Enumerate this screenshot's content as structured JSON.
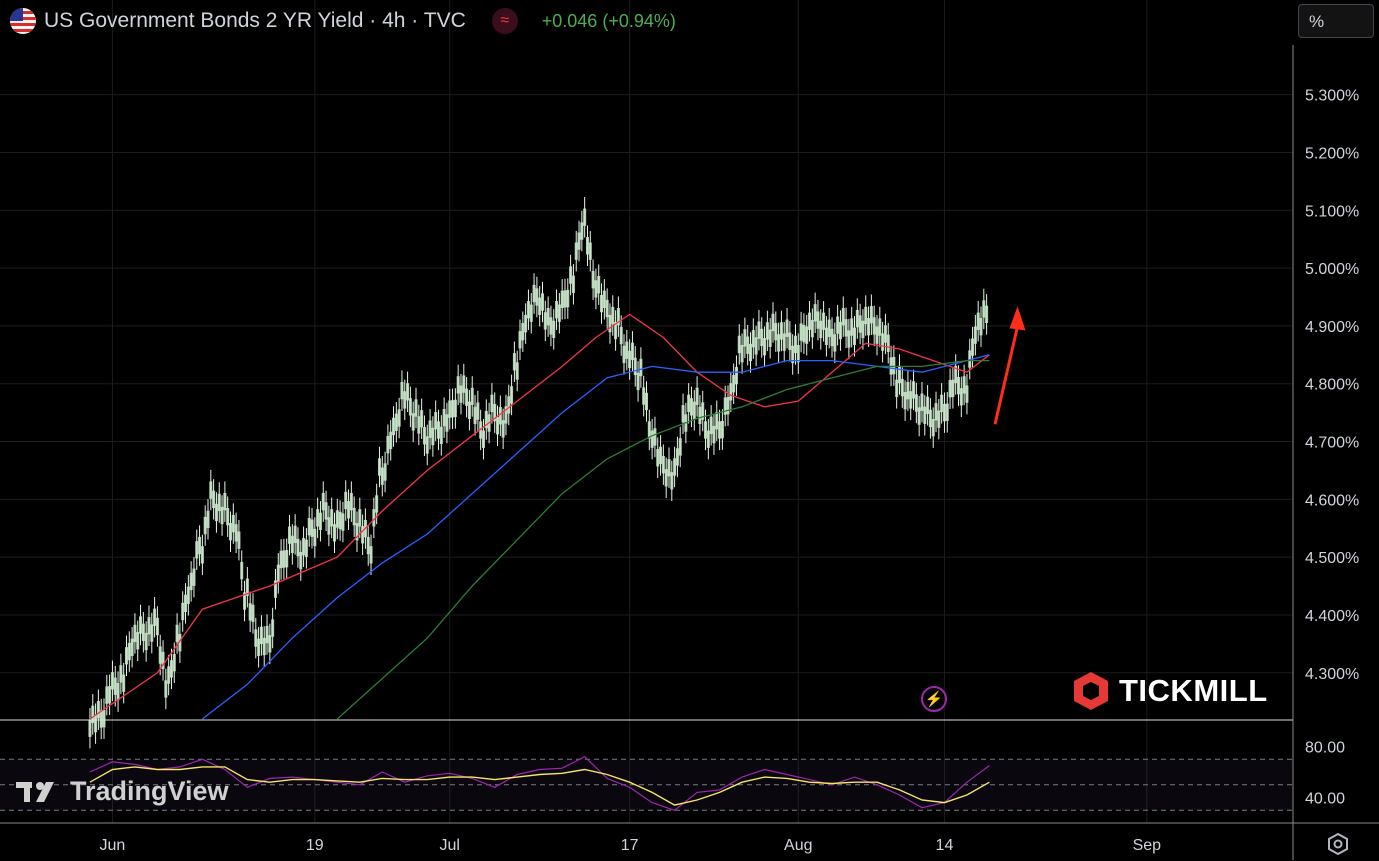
{
  "header": {
    "title": "US Government Bonds 2 YR Yield · 4h · TVC",
    "change": "+0.046 (+0.94%)",
    "flag_icon": "us-flag-icon",
    "indicator_icon": "waves-icon"
  },
  "scale_mode": "%",
  "watermark": "TradingView",
  "brand": "TICKMILL",
  "colors": {
    "candle_up": "#e8f5e9",
    "ma_short": "#f23645",
    "ma_mid": "#2962ff",
    "ma_long": "#2e7d32",
    "rsi": "#9c27b0",
    "rsi_ma": "#f5e663",
    "arrow": "#ff2d1a",
    "change_up": "#4caf50"
  },
  "chart_data": [
    {
      "type": "line",
      "title": "US Government Bonds 2 YR Yield · 4h · TVC",
      "ylim": [
        4.22,
        5.36
      ],
      "y_ticks": [
        "5.300%",
        "5.200%",
        "5.100%",
        "5.000%",
        "4.900%",
        "4.800%",
        "4.700%",
        "4.600%",
        "4.500%",
        "4.400%",
        "4.300%"
      ],
      "y_tick_values": [
        5.3,
        5.2,
        5.1,
        5.0,
        4.9,
        4.8,
        4.7,
        4.6,
        4.5,
        4.4,
        4.3
      ],
      "x_ticks": [
        "Jun",
        "19",
        "Jul",
        "17",
        "Aug",
        "14",
        "Sep"
      ],
      "x_tick_dates": [
        "2023-06-01",
        "2023-06-19",
        "2023-07-01",
        "2023-07-17",
        "2023-08-01",
        "2023-08-14",
        "2023-09-01"
      ],
      "xlim": [
        "2023-05-22",
        "2023-09-14"
      ],
      "grid": true,
      "series": [
        {
          "values": [
            [
              0,
              4.22
            ],
            [
              1,
              4.27
            ],
            [
              2,
              4.29
            ],
            [
              3,
              4.36
            ],
            [
              4,
              4.37
            ],
            [
              5,
              4.38
            ],
            [
              6,
              4.28
            ],
            [
              7,
              4.36
            ],
            [
              8,
              4.45
            ],
            [
              9,
              4.52
            ],
            [
              10,
              4.6
            ],
            [
              11,
              4.58
            ],
            [
              12,
              4.55
            ],
            [
              13,
              4.44
            ],
            [
              14,
              4.36
            ],
            [
              15,
              4.35
            ],
            [
              16,
              4.48
            ],
            [
              17,
              4.53
            ],
            [
              18,
              4.51
            ],
            [
              19,
              4.55
            ],
            [
              20,
              4.58
            ],
            [
              21,
              4.55
            ],
            [
              22,
              4.59
            ],
            [
              23,
              4.56
            ],
            [
              24,
              4.52
            ],
            [
              25,
              4.64
            ],
            [
              26,
              4.71
            ],
            [
              27,
              4.78
            ],
            [
              28,
              4.75
            ],
            [
              29,
              4.71
            ],
            [
              30,
              4.72
            ],
            [
              31,
              4.74
            ],
            [
              32,
              4.79
            ],
            [
              33,
              4.77
            ],
            [
              34,
              4.72
            ],
            [
              35,
              4.75
            ],
            [
              36,
              4.73
            ],
            [
              37,
              4.83
            ],
            [
              38,
              4.92
            ],
            [
              39,
              4.95
            ],
            [
              40,
              4.9
            ],
            [
              41,
              4.93
            ],
            [
              42,
              4.98
            ],
            [
              43,
              5.08
            ],
            [
              44,
              4.98
            ],
            [
              45,
              4.93
            ],
            [
              46,
              4.9
            ],
            [
              47,
              4.85
            ],
            [
              48,
              4.82
            ],
            [
              49,
              4.72
            ],
            [
              50,
              4.66
            ],
            [
              51,
              4.64
            ],
            [
              52,
              4.74
            ],
            [
              53,
              4.77
            ],
            [
              54,
              4.72
            ],
            [
              55,
              4.72
            ],
            [
              56,
              4.77
            ],
            [
              57,
              4.86
            ],
            [
              58,
              4.87
            ],
            [
              59,
              4.88
            ],
            [
              60,
              4.89
            ],
            [
              61,
              4.88
            ],
            [
              62,
              4.86
            ],
            [
              63,
              4.9
            ],
            [
              64,
              4.91
            ],
            [
              65,
              4.88
            ],
            [
              66,
              4.9
            ],
            [
              67,
              4.89
            ],
            [
              68,
              4.91
            ],
            [
              69,
              4.9
            ],
            [
              70,
              4.87
            ],
            [
              71,
              4.8
            ],
            [
              72,
              4.78
            ],
            [
              73,
              4.76
            ],
            [
              74,
              4.74
            ],
            [
              75,
              4.75
            ],
            [
              76,
              4.8
            ],
            [
              77,
              4.79
            ],
            [
              78,
              4.9
            ],
            [
              79,
              4.92
            ]
          ]
        },
        {
          "name": "",
          "values": [
            [
              0,
              4.22
            ],
            [
              6,
              4.3
            ],
            [
              10,
              4.41
            ],
            [
              16,
              4.45
            ],
            [
              22,
              4.5
            ],
            [
              26,
              4.58
            ],
            [
              30,
              4.65
            ],
            [
              34,
              4.71
            ],
            [
              38,
              4.77
            ],
            [
              42,
              4.83
            ],
            [
              45,
              4.88
            ],
            [
              48,
              4.92
            ],
            [
              51,
              4.88
            ],
            [
              54,
              4.82
            ],
            [
              57,
              4.78
            ],
            [
              60,
              4.76
            ],
            [
              63,
              4.77
            ],
            [
              66,
              4.82
            ],
            [
              69,
              4.87
            ],
            [
              72,
              4.86
            ],
            [
              75,
              4.84
            ],
            [
              78,
              4.82
            ],
            [
              80,
              4.85
            ]
          ]
        },
        {
          "name": "",
          "values": [
            [
              10,
              4.22
            ],
            [
              14,
              4.28
            ],
            [
              18,
              4.36
            ],
            [
              22,
              4.43
            ],
            [
              26,
              4.49
            ],
            [
              30,
              4.54
            ],
            [
              34,
              4.61
            ],
            [
              38,
              4.68
            ],
            [
              42,
              4.75
            ],
            [
              46,
              4.81
            ],
            [
              50,
              4.83
            ],
            [
              54,
              4.82
            ],
            [
              58,
              4.82
            ],
            [
              62,
              4.84
            ],
            [
              66,
              4.84
            ],
            [
              70,
              4.83
            ],
            [
              74,
              4.82
            ],
            [
              78,
              4.84
            ],
            [
              80,
              4.85
            ]
          ]
        },
        {
          "name": "",
          "values": [
            [
              22,
              4.22
            ],
            [
              26,
              4.29
            ],
            [
              30,
              4.36
            ],
            [
              34,
              4.45
            ],
            [
              38,
              4.53
            ],
            [
              42,
              4.61
            ],
            [
              46,
              4.67
            ],
            [
              50,
              4.71
            ],
            [
              54,
              4.74
            ],
            [
              58,
              4.76
            ],
            [
              62,
              4.79
            ],
            [
              66,
              4.81
            ],
            [
              70,
              4.83
            ],
            [
              74,
              4.83
            ],
            [
              78,
              4.84
            ],
            [
              80,
              4.84
            ]
          ]
        }
      ],
      "annotations": [
        {
          "type": "arrow",
          "from": [
            80.5,
            4.73
          ],
          "to": [
            82.5,
            4.92
          ]
        }
      ]
    },
    {
      "type": "line",
      "title": "",
      "ylim": [
        20,
        100
      ],
      "y_ticks": [
        "80.00",
        "40.00"
      ],
      "y_tick_values": [
        80,
        40
      ],
      "bands": [
        70,
        50,
        30
      ],
      "series": [
        {
          "values": [
            [
              0,
              60
            ],
            [
              2,
              68
            ],
            [
              4,
              66
            ],
            [
              6,
              62
            ],
            [
              8,
              64
            ],
            [
              10,
              70
            ],
            [
              12,
              62
            ],
            [
              14,
              48
            ],
            [
              16,
              55
            ],
            [
              18,
              56
            ],
            [
              20,
              54
            ],
            [
              22,
              52
            ],
            [
              24,
              50
            ],
            [
              26,
              60
            ],
            [
              28,
              52
            ],
            [
              30,
              57
            ],
            [
              32,
              59
            ],
            [
              34,
              55
            ],
            [
              36,
              48
            ],
            [
              38,
              58
            ],
            [
              40,
              62
            ],
            [
              42,
              63
            ],
            [
              44,
              72
            ],
            [
              46,
              55
            ],
            [
              48,
              48
            ],
            [
              50,
              36
            ],
            [
              52,
              30
            ],
            [
              54,
              44
            ],
            [
              56,
              46
            ],
            [
              58,
              56
            ],
            [
              60,
              62
            ],
            [
              62,
              58
            ],
            [
              64,
              54
            ],
            [
              66,
              50
            ],
            [
              68,
              56
            ],
            [
              70,
              50
            ],
            [
              72,
              42
            ],
            [
              74,
              32
            ],
            [
              76,
              36
            ],
            [
              78,
              52
            ],
            [
              80,
              65
            ]
          ]
        },
        {
          "values": [
            [
              0,
              52
            ],
            [
              2,
              62
            ],
            [
              4,
              64
            ],
            [
              6,
              62
            ],
            [
              8,
              62
            ],
            [
              10,
              64
            ],
            [
              12,
              64
            ],
            [
              14,
              54
            ],
            [
              16,
              52
            ],
            [
              18,
              54
            ],
            [
              20,
              54
            ],
            [
              22,
              53
            ],
            [
              24,
              52
            ],
            [
              26,
              55
            ],
            [
              28,
              54
            ],
            [
              30,
              54
            ],
            [
              32,
              56
            ],
            [
              34,
              56
            ],
            [
              36,
              54
            ],
            [
              38,
              56
            ],
            [
              40,
              58
            ],
            [
              42,
              59
            ],
            [
              44,
              62
            ],
            [
              46,
              58
            ],
            [
              48,
              52
            ],
            [
              50,
              44
            ],
            [
              52,
              34
            ],
            [
              54,
              38
            ],
            [
              56,
              44
            ],
            [
              58,
              52
            ],
            [
              60,
              56
            ],
            [
              62,
              55
            ],
            [
              64,
              52
            ],
            [
              66,
              51
            ],
            [
              68,
              52
            ],
            [
              70,
              52
            ],
            [
              72,
              46
            ],
            [
              74,
              38
            ],
            [
              76,
              36
            ],
            [
              78,
              42
            ],
            [
              80,
              52
            ]
          ]
        }
      ]
    }
  ]
}
